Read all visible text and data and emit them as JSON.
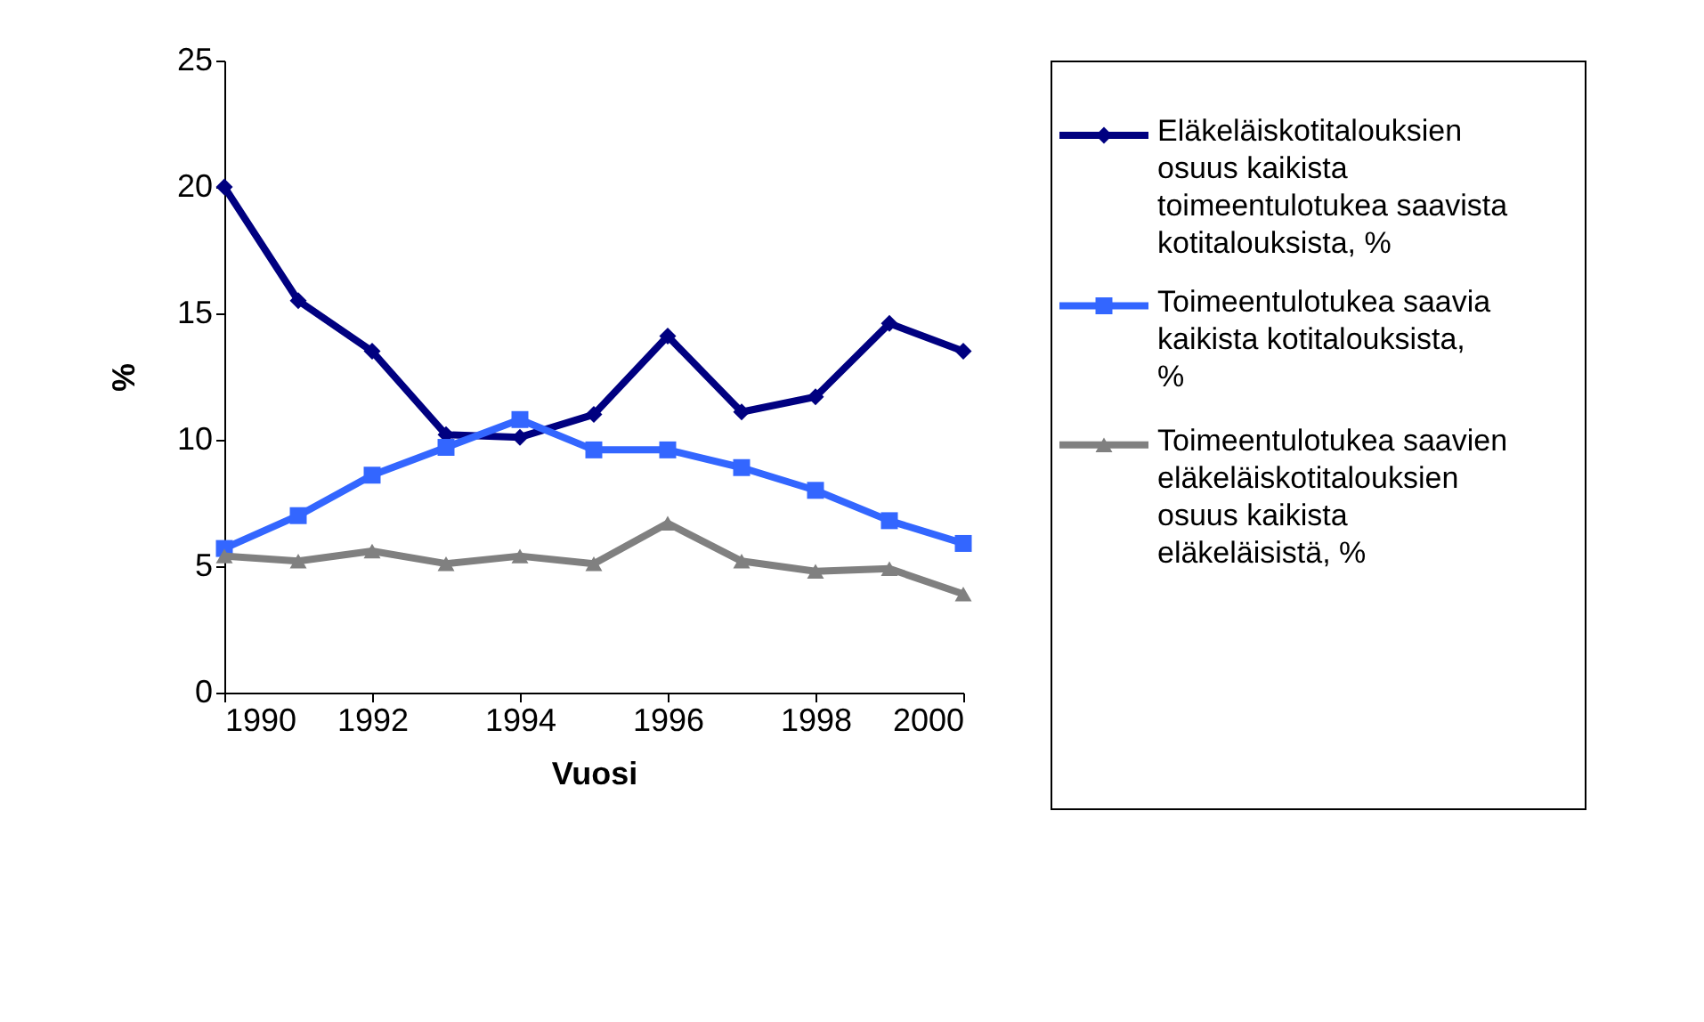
{
  "chart_data": {
    "type": "line",
    "xlabel": "Vuosi",
    "ylabel": "%",
    "x": [
      1990,
      1991,
      1992,
      1993,
      1994,
      1995,
      1996,
      1997,
      1998,
      1999,
      2000
    ],
    "xlim": [
      1990,
      2000
    ],
    "xticks": [
      1990,
      1992,
      1994,
      1996,
      1998,
      2000
    ],
    "ylim": [
      0,
      25
    ],
    "yticks": [
      0,
      5,
      10,
      15,
      20,
      25
    ],
    "grid": false,
    "legend": "right",
    "series": [
      {
        "name": "Eläkeläiskotitalouksien osuus kaikista toimeentulotukea saavista kotitalouksista, %",
        "color": "#000080",
        "marker": "diamond",
        "values": [
          20,
          15.5,
          13.5,
          10.2,
          10.1,
          11.0,
          14.1,
          11.1,
          11.7,
          14.6,
          13.5
        ]
      },
      {
        "name": "Toimeentulotukea saavia kaikista kotitalouksista, %",
        "color": "#3366ff",
        "marker": "square",
        "values": [
          5.7,
          7.0,
          8.6,
          9.7,
          10.8,
          9.6,
          9.6,
          8.9,
          8.0,
          6.8,
          5.9
        ]
      },
      {
        "name": "Toimeentulotukea saavien eläkeläiskotitalouksien osuus kaikista eläkeläisistä, %",
        "color": "#808080",
        "marker": "triangle",
        "values": [
          5.4,
          5.2,
          5.6,
          5.1,
          5.4,
          5.1,
          6.7,
          5.2,
          4.8,
          4.9,
          3.9
        ]
      }
    ]
  }
}
